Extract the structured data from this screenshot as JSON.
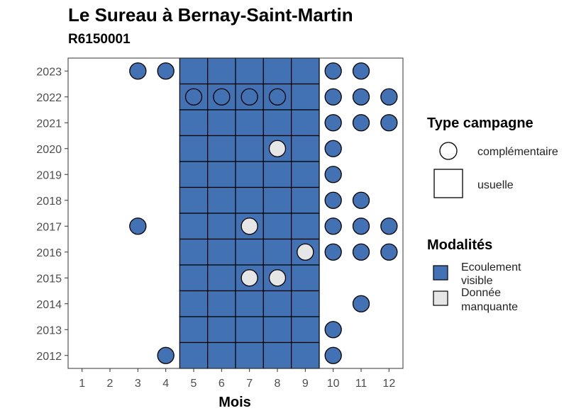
{
  "chart_data": {
    "type": "heatmap",
    "title": "Le Sureau à Bernay-Saint-Martin",
    "subtitle": "R6150001",
    "xlabel": "Mois",
    "ylabel": "",
    "x_ticks": [
      "1",
      "2",
      "3",
      "4",
      "5",
      "6",
      "7",
      "8",
      "9",
      "10",
      "11",
      "12"
    ],
    "y_ticks": [
      "2012",
      "2013",
      "2014",
      "2015",
      "2016",
      "2017",
      "2018",
      "2019",
      "2020",
      "2021",
      "2022",
      "2023"
    ],
    "xlim": [
      0.5,
      12.5
    ],
    "ylim": [
      2011.5,
      2023.5
    ],
    "grid": false,
    "colors": {
      "Ecoulement visible": "#4372b4",
      "Donnée manquante": "#e6e6e6"
    },
    "points": [
      {
        "month": 3,
        "year": 2023,
        "campagne": "complémentaire",
        "modalite": "Ecoulement visible"
      },
      {
        "month": 4,
        "year": 2023,
        "campagne": "complémentaire",
        "modalite": "Ecoulement visible"
      },
      {
        "month": 5,
        "year": 2023,
        "campagne": "usuelle",
        "modalite": "Ecoulement visible"
      },
      {
        "month": 6,
        "year": 2023,
        "campagne": "usuelle",
        "modalite": "Ecoulement visible"
      },
      {
        "month": 7,
        "year": 2023,
        "campagne": "usuelle",
        "modalite": "Ecoulement visible"
      },
      {
        "month": 8,
        "year": 2023,
        "campagne": "usuelle",
        "modalite": "Ecoulement visible"
      },
      {
        "month": 9,
        "year": 2023,
        "campagne": "usuelle",
        "modalite": "Ecoulement visible"
      },
      {
        "month": 10,
        "year": 2023,
        "campagne": "complémentaire",
        "modalite": "Ecoulement visible"
      },
      {
        "month": 11,
        "year": 2023,
        "campagne": "complémentaire",
        "modalite": "Ecoulement visible"
      },
      {
        "month": 5,
        "year": 2022,
        "campagne": "usuelle",
        "modalite": "Ecoulement visible"
      },
      {
        "month": 6,
        "year": 2022,
        "campagne": "usuelle",
        "modalite": "Ecoulement visible"
      },
      {
        "month": 7,
        "year": 2022,
        "campagne": "usuelle",
        "modalite": "Ecoulement visible"
      },
      {
        "month": 8,
        "year": 2022,
        "campagne": "usuelle",
        "modalite": "Ecoulement visible"
      },
      {
        "month": 9,
        "year": 2022,
        "campagne": "usuelle",
        "modalite": "Ecoulement visible"
      },
      {
        "month": 5,
        "year": 2022,
        "campagne": "complémentaire",
        "modalite": "Ecoulement visible"
      },
      {
        "month": 6,
        "year": 2022,
        "campagne": "complémentaire",
        "modalite": "Ecoulement visible"
      },
      {
        "month": 7,
        "year": 2022,
        "campagne": "complémentaire",
        "modalite": "Ecoulement visible"
      },
      {
        "month": 8,
        "year": 2022,
        "campagne": "complémentaire",
        "modalite": "Ecoulement visible"
      },
      {
        "month": 10,
        "year": 2022,
        "campagne": "complémentaire",
        "modalite": "Ecoulement visible"
      },
      {
        "month": 11,
        "year": 2022,
        "campagne": "complémentaire",
        "modalite": "Ecoulement visible"
      },
      {
        "month": 12,
        "year": 2022,
        "campagne": "complémentaire",
        "modalite": "Ecoulement visible"
      },
      {
        "month": 5,
        "year": 2021,
        "campagne": "usuelle",
        "modalite": "Ecoulement visible"
      },
      {
        "month": 6,
        "year": 2021,
        "campagne": "usuelle",
        "modalite": "Ecoulement visible"
      },
      {
        "month": 7,
        "year": 2021,
        "campagne": "usuelle",
        "modalite": "Ecoulement visible"
      },
      {
        "month": 8,
        "year": 2021,
        "campagne": "usuelle",
        "modalite": "Ecoulement visible"
      },
      {
        "month": 9,
        "year": 2021,
        "campagne": "usuelle",
        "modalite": "Ecoulement visible"
      },
      {
        "month": 10,
        "year": 2021,
        "campagne": "complémentaire",
        "modalite": "Ecoulement visible"
      },
      {
        "month": 11,
        "year": 2021,
        "campagne": "complémentaire",
        "modalite": "Ecoulement visible"
      },
      {
        "month": 12,
        "year": 2021,
        "campagne": "complémentaire",
        "modalite": "Ecoulement visible"
      },
      {
        "month": 5,
        "year": 2020,
        "campagne": "usuelle",
        "modalite": "Ecoulement visible"
      },
      {
        "month": 6,
        "year": 2020,
        "campagne": "usuelle",
        "modalite": "Ecoulement visible"
      },
      {
        "month": 7,
        "year": 2020,
        "campagne": "usuelle",
        "modalite": "Ecoulement visible"
      },
      {
        "month": 8,
        "year": 2020,
        "campagne": "usuelle",
        "modalite": "Ecoulement visible"
      },
      {
        "month": 9,
        "year": 2020,
        "campagne": "usuelle",
        "modalite": "Ecoulement visible"
      },
      {
        "month": 8,
        "year": 2020,
        "campagne": "complémentaire",
        "modalite": "Donnée manquante"
      },
      {
        "month": 10,
        "year": 2020,
        "campagne": "complémentaire",
        "modalite": "Ecoulement visible"
      },
      {
        "month": 5,
        "year": 2019,
        "campagne": "usuelle",
        "modalite": "Ecoulement visible"
      },
      {
        "month": 6,
        "year": 2019,
        "campagne": "usuelle",
        "modalite": "Ecoulement visible"
      },
      {
        "month": 7,
        "year": 2019,
        "campagne": "usuelle",
        "modalite": "Ecoulement visible"
      },
      {
        "month": 8,
        "year": 2019,
        "campagne": "usuelle",
        "modalite": "Ecoulement visible"
      },
      {
        "month": 9,
        "year": 2019,
        "campagne": "usuelle",
        "modalite": "Ecoulement visible"
      },
      {
        "month": 10,
        "year": 2019,
        "campagne": "complémentaire",
        "modalite": "Ecoulement visible"
      },
      {
        "month": 5,
        "year": 2018,
        "campagne": "usuelle",
        "modalite": "Ecoulement visible"
      },
      {
        "month": 6,
        "year": 2018,
        "campagne": "usuelle",
        "modalite": "Ecoulement visible"
      },
      {
        "month": 7,
        "year": 2018,
        "campagne": "usuelle",
        "modalite": "Ecoulement visible"
      },
      {
        "month": 8,
        "year": 2018,
        "campagne": "usuelle",
        "modalite": "Ecoulement visible"
      },
      {
        "month": 9,
        "year": 2018,
        "campagne": "usuelle",
        "modalite": "Ecoulement visible"
      },
      {
        "month": 10,
        "year": 2018,
        "campagne": "complémentaire",
        "modalite": "Ecoulement visible"
      },
      {
        "month": 11,
        "year": 2018,
        "campagne": "complémentaire",
        "modalite": "Ecoulement visible"
      },
      {
        "month": 3,
        "year": 2017,
        "campagne": "complémentaire",
        "modalite": "Ecoulement visible"
      },
      {
        "month": 5,
        "year": 2017,
        "campagne": "usuelle",
        "modalite": "Ecoulement visible"
      },
      {
        "month": 6,
        "year": 2017,
        "campagne": "usuelle",
        "modalite": "Ecoulement visible"
      },
      {
        "month": 7,
        "year": 2017,
        "campagne": "usuelle",
        "modalite": "Ecoulement visible"
      },
      {
        "month": 8,
        "year": 2017,
        "campagne": "usuelle",
        "modalite": "Ecoulement visible"
      },
      {
        "month": 9,
        "year": 2017,
        "campagne": "usuelle",
        "modalite": "Ecoulement visible"
      },
      {
        "month": 7,
        "year": 2017,
        "campagne": "complémentaire",
        "modalite": "Donnée manquante"
      },
      {
        "month": 10,
        "year": 2017,
        "campagne": "complémentaire",
        "modalite": "Ecoulement visible"
      },
      {
        "month": 11,
        "year": 2017,
        "campagne": "complémentaire",
        "modalite": "Ecoulement visible"
      },
      {
        "month": 12,
        "year": 2017,
        "campagne": "complémentaire",
        "modalite": "Ecoulement visible"
      },
      {
        "month": 5,
        "year": 2016,
        "campagne": "usuelle",
        "modalite": "Ecoulement visible"
      },
      {
        "month": 6,
        "year": 2016,
        "campagne": "usuelle",
        "modalite": "Ecoulement visible"
      },
      {
        "month": 7,
        "year": 2016,
        "campagne": "usuelle",
        "modalite": "Ecoulement visible"
      },
      {
        "month": 8,
        "year": 2016,
        "campagne": "usuelle",
        "modalite": "Ecoulement visible"
      },
      {
        "month": 9,
        "year": 2016,
        "campagne": "usuelle",
        "modalite": "Ecoulement visible"
      },
      {
        "month": 9,
        "year": 2016,
        "campagne": "complémentaire",
        "modalite": "Donnée manquante"
      },
      {
        "month": 10,
        "year": 2016,
        "campagne": "complémentaire",
        "modalite": "Ecoulement visible"
      },
      {
        "month": 11,
        "year": 2016,
        "campagne": "complémentaire",
        "modalite": "Ecoulement visible"
      },
      {
        "month": 12,
        "year": 2016,
        "campagne": "complémentaire",
        "modalite": "Ecoulement visible"
      },
      {
        "month": 5,
        "year": 2015,
        "campagne": "usuelle",
        "modalite": "Ecoulement visible"
      },
      {
        "month": 6,
        "year": 2015,
        "campagne": "usuelle",
        "modalite": "Ecoulement visible"
      },
      {
        "month": 7,
        "year": 2015,
        "campagne": "usuelle",
        "modalite": "Ecoulement visible"
      },
      {
        "month": 8,
        "year": 2015,
        "campagne": "usuelle",
        "modalite": "Ecoulement visible"
      },
      {
        "month": 9,
        "year": 2015,
        "campagne": "usuelle",
        "modalite": "Ecoulement visible"
      },
      {
        "month": 7,
        "year": 2015,
        "campagne": "complémentaire",
        "modalite": "Donnée manquante"
      },
      {
        "month": 8,
        "year": 2015,
        "campagne": "complémentaire",
        "modalite": "Donnée manquante"
      },
      {
        "month": 5,
        "year": 2014,
        "campagne": "usuelle",
        "modalite": "Ecoulement visible"
      },
      {
        "month": 6,
        "year": 2014,
        "campagne": "usuelle",
        "modalite": "Ecoulement visible"
      },
      {
        "month": 7,
        "year": 2014,
        "campagne": "usuelle",
        "modalite": "Ecoulement visible"
      },
      {
        "month": 8,
        "year": 2014,
        "campagne": "usuelle",
        "modalite": "Ecoulement visible"
      },
      {
        "month": 9,
        "year": 2014,
        "campagne": "usuelle",
        "modalite": "Ecoulement visible"
      },
      {
        "month": 11,
        "year": 2014,
        "campagne": "complémentaire",
        "modalite": "Ecoulement visible"
      },
      {
        "month": 5,
        "year": 2013,
        "campagne": "usuelle",
        "modalite": "Ecoulement visible"
      },
      {
        "month": 6,
        "year": 2013,
        "campagne": "usuelle",
        "modalite": "Ecoulement visible"
      },
      {
        "month": 7,
        "year": 2013,
        "campagne": "usuelle",
        "modalite": "Ecoulement visible"
      },
      {
        "month": 8,
        "year": 2013,
        "campagne": "usuelle",
        "modalite": "Ecoulement visible"
      },
      {
        "month": 9,
        "year": 2013,
        "campagne": "usuelle",
        "modalite": "Ecoulement visible"
      },
      {
        "month": 10,
        "year": 2013,
        "campagne": "complémentaire",
        "modalite": "Ecoulement visible"
      },
      {
        "month": 4,
        "year": 2012,
        "campagne": "complémentaire",
        "modalite": "Ecoulement visible"
      },
      {
        "month": 5,
        "year": 2012,
        "campagne": "usuelle",
        "modalite": "Ecoulement visible"
      },
      {
        "month": 6,
        "year": 2012,
        "campagne": "usuelle",
        "modalite": "Ecoulement visible"
      },
      {
        "month": 7,
        "year": 2012,
        "campagne": "usuelle",
        "modalite": "Ecoulement visible"
      },
      {
        "month": 8,
        "year": 2012,
        "campagne": "usuelle",
        "modalite": "Ecoulement visible"
      },
      {
        "month": 9,
        "year": 2012,
        "campagne": "usuelle",
        "modalite": "Ecoulement visible"
      },
      {
        "month": 10,
        "year": 2012,
        "campagne": "complémentaire",
        "modalite": "Ecoulement visible"
      }
    ],
    "legend": {
      "placement": "right",
      "type_title": "Type campagne",
      "type_items": [
        "complémentaire",
        "usuelle"
      ],
      "mod_title": "Modalités",
      "mod_items": [
        {
          "key": "Ecoulement visible",
          "lines": [
            "Ecoulement",
            "visible"
          ]
        },
        {
          "key": "Donnée manquante",
          "lines": [
            "Donnée",
            "manquante"
          ]
        }
      ]
    }
  }
}
